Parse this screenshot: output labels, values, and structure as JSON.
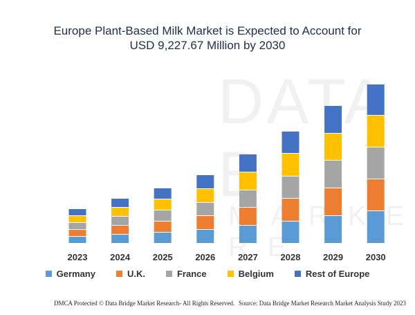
{
  "title_line1": "Europe Plant-Based Milk Market is Expected to Account for",
  "title_line2": "USD 9,227.67 Million by 2030",
  "watermark": {
    "brand": "DATA B",
    "tagline": "MARKET RE"
  },
  "footer": {
    "left": "DMCA Protected © Data Bridge Market Research-  All Rights Reserved.",
    "right": "Source: Data Bridge Market Research  Market Analysis Study 2023"
  },
  "chart_data": {
    "type": "bar",
    "stacked": true,
    "title": "Europe Plant-Based Milk Market is Expected to Account for USD 9,227.67 Million by 2030",
    "categories": [
      "2023",
      "2024",
      "2025",
      "2026",
      "2027",
      "2028",
      "2029",
      "2030"
    ],
    "series": [
      {
        "name": "Germany",
        "color": "#5b9bd5",
        "values": [
          1.0,
          1.3,
          1.6,
          2.0,
          2.6,
          3.2,
          4.0,
          4.7
        ]
      },
      {
        "name": "U.K.",
        "color": "#ed7d31",
        "values": [
          1.0,
          1.3,
          1.6,
          2.0,
          2.6,
          3.3,
          4.0,
          4.6
        ]
      },
      {
        "name": "France",
        "color": "#a5a5a5",
        "values": [
          1.0,
          1.3,
          1.6,
          1.9,
          2.5,
          3.2,
          4.0,
          4.6
        ]
      },
      {
        "name": "Belgium",
        "color": "#ffc000",
        "values": [
          1.0,
          1.3,
          1.6,
          2.0,
          2.6,
          3.3,
          3.9,
          4.6
        ]
      },
      {
        "name": "Rest of Europe",
        "color": "#4472c4",
        "values": [
          1.0,
          1.3,
          1.6,
          2.0,
          2.6,
          3.2,
          4.0,
          4.5
        ]
      }
    ],
    "xlabel": "",
    "ylabel": "",
    "ylim": [
      0,
      24
    ],
    "grid": false,
    "axes_visible": false,
    "legend_position": "bottom"
  }
}
